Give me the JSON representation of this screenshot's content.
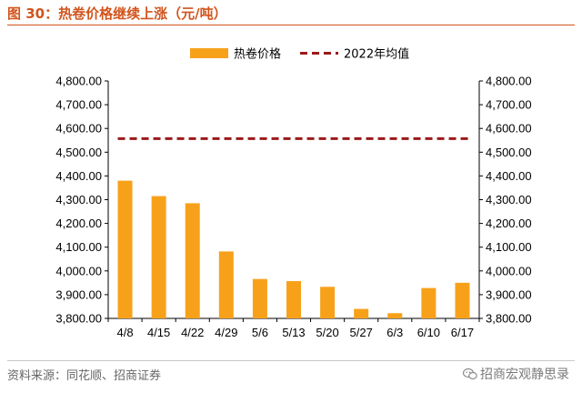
{
  "figure": {
    "title": "图 30：热卷价格继续上涨（元/吨）",
    "source": "资料来源：同花顺、招商证券",
    "watermark": "招商宏观静思录"
  },
  "colors": {
    "accent": "#d2541c",
    "bar": "#f7a11a",
    "reference_line": "#9b1a1a"
  },
  "chart_data": {
    "type": "bar",
    "categories": [
      "4/8",
      "4/15",
      "4/22",
      "4/29",
      "5/6",
      "5/13",
      "5/20",
      "5/27",
      "6/3",
      "6/10",
      "6/17"
    ],
    "series": [
      {
        "name": "热卷价格",
        "type": "bar",
        "values": [
          4380,
          4315,
          4285,
          4082,
          3966,
          3957,
          3933,
          3840,
          3822,
          3928,
          3950
        ]
      },
      {
        "name": "2022年均值",
        "type": "dashed-line",
        "value": 4557
      }
    ],
    "ylim": [
      3800,
      4800
    ],
    "y_ticks": [
      "3,800.00",
      "3,900.00",
      "4,000.00",
      "4,100.00",
      "4,200.00",
      "4,300.00",
      "4,400.00",
      "4,500.00",
      "4,600.00",
      "4,700.00",
      "4,800.00"
    ],
    "y2_ticks": [
      "3,800.00",
      "3,900.00",
      "4,000.00",
      "4,100.00",
      "4,200.00",
      "4,300.00",
      "4,400.00",
      "4,500.00",
      "4,600.00",
      "4,700.00",
      "4,800.00"
    ],
    "y2lim": [
      3800,
      4800
    ],
    "legend_position": "top",
    "grid": false
  }
}
